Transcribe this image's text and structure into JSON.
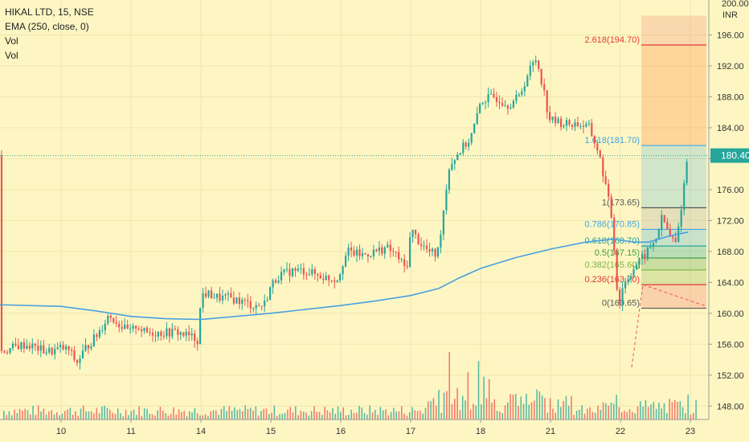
{
  "legend": {
    "symbol": "HIKAL LTD, 15, NSE",
    "ema": "EMA (250, close, 0)",
    "vol1": "Vol",
    "vol2": "Vol"
  },
  "axis": {
    "currency": "INR",
    "top_clipped": "200.00",
    "price_ticks": [
      "196.00",
      "192.00",
      "188.00",
      "184.00",
      "180.00",
      "176.00",
      "172.00",
      "168.00",
      "164.00",
      "160.00",
      "156.00",
      "152.00",
      "148.00"
    ],
    "date_ticks": [
      "10",
      "11",
      "14",
      "15",
      "16",
      "17",
      "18",
      "21",
      "22",
      "23"
    ]
  },
  "last_price": {
    "label": "180.40",
    "value": 180.4,
    "color": "#26a69a"
  },
  "colors": {
    "up": "#26a69a",
    "down": "#ef5350",
    "ema": "#4a9fe0",
    "background": "#fdf6c3"
  },
  "fib_levels": [
    {
      "label": "2.618(194.70)",
      "ratio": 2.618,
      "price": 194.7,
      "color": "#e53935"
    },
    {
      "label": "1.618(181.70)",
      "ratio": 1.618,
      "price": 181.7,
      "color": "#3fa7df"
    },
    {
      "label": "1(173.65)",
      "ratio": 1,
      "price": 173.65,
      "color": "#555555"
    },
    {
      "label": "0.786(170.85)",
      "ratio": 0.786,
      "price": 170.85,
      "color": "#3fa7df"
    },
    {
      "label": "0.618(168.70)",
      "ratio": 0.618,
      "price": 168.7,
      "color": "#26a69a"
    },
    {
      "label": "0.5(167.15)",
      "ratio": 0.5,
      "price": 167.15,
      "color": "#43a047"
    },
    {
      "label": "0.382(165.60)",
      "ratio": 0.382,
      "price": 165.6,
      "color": "#7cb342"
    },
    {
      "label": "0.236(163.70)",
      "ratio": 0.236,
      "price": 163.7,
      "color": "#e53935"
    },
    {
      "label": "0(160.65)",
      "ratio": 0,
      "price": 160.65,
      "color": "#555555"
    }
  ],
  "chart_data": {
    "type": "candlestick",
    "title": "HIKAL LTD, 15, NSE",
    "ylabel": "INR",
    "ylim": [
      146.5,
      201.5
    ],
    "x_sessions": [
      "10",
      "11",
      "14",
      "15",
      "16",
      "17",
      "18",
      "21",
      "22",
      "23"
    ],
    "price_path": [
      [
        0,
        155.5
      ],
      [
        0.12,
        155.2
      ],
      [
        0.22,
        153.5
      ],
      [
        0.35,
        155.5
      ],
      [
        0.5,
        157.0
      ],
      [
        0.6,
        158.5
      ],
      [
        0.68,
        159.8
      ],
      [
        0.78,
        159.0
      ],
      [
        0.9,
        158.0
      ],
      [
        1.0,
        157.5
      ],
      [
        1.08,
        158.5
      ],
      [
        1.2,
        157.5
      ],
      [
        1.35,
        157.5
      ],
      [
        1.5,
        157.5
      ],
      [
        1.65,
        157.6
      ],
      [
        1.85,
        157.0
      ],
      [
        1.97,
        156.5
      ],
      [
        2.0,
        162.5
      ],
      [
        2.1,
        162.5
      ],
      [
        2.25,
        162.0
      ],
      [
        2.4,
        162.0
      ],
      [
        2.6,
        161.5
      ],
      [
        2.75,
        161.0
      ],
      [
        2.9,
        161.0
      ],
      [
        3.0,
        163.5
      ],
      [
        3.1,
        164.8
      ],
      [
        3.3,
        165.5
      ],
      [
        3.5,
        165.5
      ],
      [
        3.7,
        164.8
      ],
      [
        3.85,
        164.5
      ],
      [
        3.97,
        164.5
      ],
      [
        4.0,
        166.0
      ],
      [
        4.1,
        168.0
      ],
      [
        4.3,
        167.5
      ],
      [
        4.5,
        168.0
      ],
      [
        4.65,
        168.5
      ],
      [
        4.8,
        167.5
      ],
      [
        4.92,
        165.8
      ],
      [
        4.97,
        167.0
      ],
      [
        5.0,
        171.0
      ],
      [
        5.1,
        169.5
      ],
      [
        5.25,
        168.0
      ],
      [
        5.38,
        167.5
      ],
      [
        5.45,
        172.0
      ],
      [
        5.55,
        179.0
      ],
      [
        5.7,
        181.0
      ],
      [
        5.85,
        182.5
      ],
      [
        5.97,
        186.0
      ],
      [
        6.0,
        187.5
      ],
      [
        6.2,
        188.0
      ],
      [
        6.4,
        187.0
      ],
      [
        6.55,
        188.0
      ],
      [
        6.7,
        191.5
      ],
      [
        6.8,
        193.0
      ],
      [
        6.9,
        189.0
      ],
      [
        6.97,
        185.5
      ],
      [
        7.0,
        185.0
      ],
      [
        7.2,
        184.5
      ],
      [
        7.4,
        184.5
      ],
      [
        7.55,
        184.0
      ],
      [
        7.68,
        181.0
      ],
      [
        7.78,
        177.0
      ],
      [
        7.88,
        172.0
      ],
      [
        7.95,
        163.5
      ],
      [
        7.97,
        158.0
      ],
      [
        8.0,
        163.0
      ],
      [
        8.1,
        164.5
      ],
      [
        8.2,
        166.0
      ],
      [
        8.35,
        167.5
      ],
      [
        8.5,
        169.5
      ],
      [
        8.6,
        172.5
      ],
      [
        8.7,
        170.0
      ],
      [
        8.8,
        169.0
      ],
      [
        8.88,
        174.5
      ],
      [
        8.96,
        180.4
      ]
    ],
    "ema_250": [
      [
        0,
        160.9
      ],
      [
        0.5,
        160.3
      ],
      [
        1.0,
        159.6
      ],
      [
        1.5,
        159.3
      ],
      [
        2.0,
        159.2
      ],
      [
        2.5,
        159.6
      ],
      [
        3.0,
        160.0
      ],
      [
        3.5,
        160.5
      ],
      [
        4.0,
        161.0
      ],
      [
        4.5,
        161.6
      ],
      [
        5.0,
        162.3
      ],
      [
        5.4,
        163.2
      ],
      [
        5.7,
        164.6
      ],
      [
        6.0,
        165.8
      ],
      [
        6.5,
        167.2
      ],
      [
        7.0,
        168.3
      ],
      [
        7.5,
        169.2
      ],
      [
        7.9,
        169.6
      ],
      [
        8.2,
        169.2
      ],
      [
        8.4,
        169.2
      ],
      [
        8.7,
        170.0
      ],
      [
        8.97,
        170.5
      ]
    ],
    "volume_peaks": [
      [
        5.55,
        0.6
      ],
      [
        5.65,
        0.28
      ],
      [
        5.72,
        0.21
      ],
      [
        5.8,
        0.42
      ],
      [
        5.88,
        0.14
      ],
      [
        5.97,
        0.52
      ],
      [
        6.05,
        0.38
      ],
      [
        6.12,
        0.36
      ],
      [
        6.2,
        0.18
      ],
      [
        6.85,
        0.25
      ],
      [
        6.92,
        0.19
      ],
      [
        7.0,
        0.19
      ],
      [
        7.95,
        0.22
      ],
      [
        8.96,
        0.22
      ]
    ]
  }
}
